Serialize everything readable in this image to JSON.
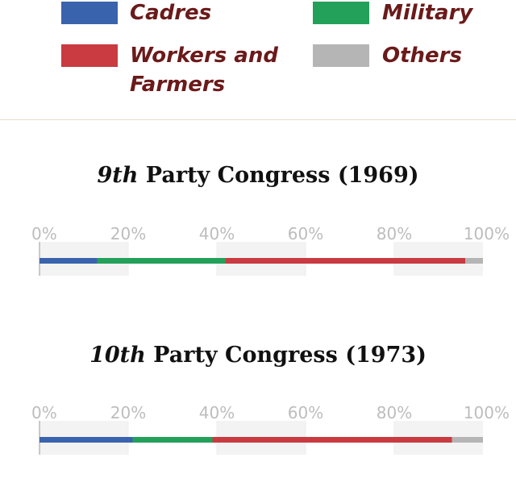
{
  "legend": {
    "items": [
      {
        "label": "Cadres",
        "color": "#3a63ad"
      },
      {
        "label": "Military",
        "color": "#23a05a"
      },
      {
        "label": "Workers and Farmers",
        "color": "#c93a41"
      },
      {
        "label": "Others",
        "color": "#b5b5b5"
      }
    ]
  },
  "chart_data": [
    {
      "type": "bar",
      "orientation": "horizontal-stacked",
      "title_ordinal": "9th",
      "title_rest": "Party Congress (1969)",
      "xlim": [
        0,
        100
      ],
      "ticks": [
        "0%",
        "20%",
        "40%",
        "60%",
        "80%",
        "100%"
      ],
      "series": [
        {
          "name": "Cadres",
          "value": 13,
          "color": "#3a63ad"
        },
        {
          "name": "Military",
          "value": 29,
          "color": "#23a05a"
        },
        {
          "name": "Workers and Farmers",
          "value": 54,
          "color": "#c93a41"
        },
        {
          "name": "Others",
          "value": 4,
          "color": "#b5b5b5"
        }
      ]
    },
    {
      "type": "bar",
      "orientation": "horizontal-stacked",
      "title_ordinal": "10th",
      "title_rest": "Party Congress (1973)",
      "xlim": [
        0,
        100
      ],
      "ticks": [
        "0%",
        "20%",
        "40%",
        "60%",
        "80%",
        "100%"
      ],
      "series": [
        {
          "name": "Cadres",
          "value": 21,
          "color": "#3a63ad"
        },
        {
          "name": "Military",
          "value": 18,
          "color": "#23a05a"
        },
        {
          "name": "Workers and Farmers",
          "value": 54,
          "color": "#c93a41"
        },
        {
          "name": "Others",
          "value": 7,
          "color": "#b5b5b5"
        }
      ]
    }
  ]
}
